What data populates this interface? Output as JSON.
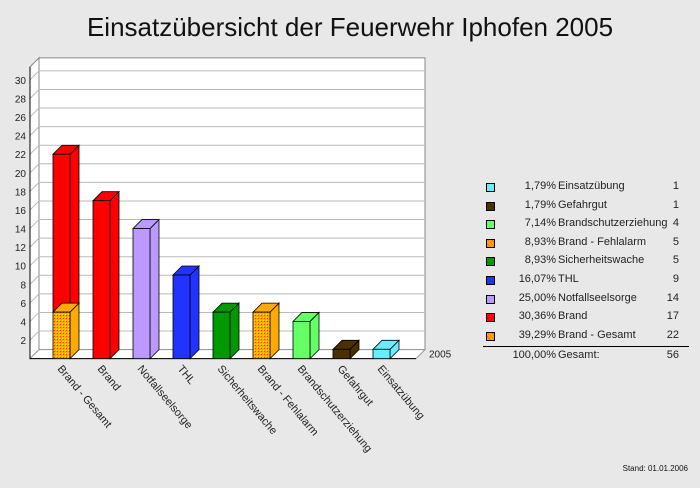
{
  "title": "Einsatzübersicht der Feuerwehr Iphofen 2005",
  "footer": "Stand: 01.01.2006",
  "chart_data": {
    "type": "bar",
    "title": "Einsatzübersicht der Feuerwehr Iphofen 2005",
    "series_label": "2005",
    "categories": [
      "Brand - Gesamt",
      "Brand",
      "Notfallseelsorge",
      "THL",
      "Sicherheitswache",
      "Brand - Fehlalarm",
      "Brandschutzerziehung",
      "Gefahrgut",
      "Einsatzübung"
    ],
    "values": [
      22,
      17,
      14,
      9,
      5,
      5,
      4,
      1,
      1
    ],
    "stack": {
      "Brand - Gesamt": [
        {
          "part": "Brand - Fehlalarm",
          "value": 5
        },
        {
          "part": "Brand",
          "value": 17
        }
      ]
    },
    "colors": [
      "#ffaa00",
      "#ff0000",
      "#bb99ff",
      "#2233ff",
      "#009900",
      "#ffaa00",
      "#66ff66",
      "#4a3000",
      "#66eeff"
    ],
    "hatched": [
      true,
      false,
      false,
      false,
      false,
      true,
      false,
      false,
      false
    ],
    "ylim": [
      0,
      32
    ],
    "yticks": [
      2,
      4,
      6,
      8,
      10,
      12,
      14,
      16,
      18,
      20,
      22,
      24,
      26,
      28,
      30
    ],
    "grid": true,
    "legend_position": "right"
  },
  "legend": {
    "items": [
      {
        "pct": "1,79%",
        "label": "Einsatzübung",
        "count": "1",
        "color": "#66eeff"
      },
      {
        "pct": "1,79%",
        "label": "Gefahrgut",
        "count": "1",
        "color": "#4a3000"
      },
      {
        "pct": "7,14%",
        "label": "Brandschutzerziehung",
        "count": "4",
        "color": "#66ff66"
      },
      {
        "pct": "8,93%",
        "label": "Brand - Fehlalarm",
        "count": "5",
        "color": "#ffaa00"
      },
      {
        "pct": "8,93%",
        "label": "Sicherheitswache",
        "count": "5",
        "color": "#009900"
      },
      {
        "pct": "16,07%",
        "label": "THL",
        "count": "9",
        "color": "#2233ff"
      },
      {
        "pct": "25,00%",
        "label": "Notfallseelsorge",
        "count": "14",
        "color": "#bb99ff"
      },
      {
        "pct": "30,36%",
        "label": "Brand",
        "count": "17",
        "color": "#ff0000"
      },
      {
        "pct": "39,29%",
        "label": "Brand - Gesamt",
        "count": "22",
        "color": "#ffaa00"
      }
    ],
    "total": {
      "pct": "100,00%",
      "label": "Gesamt:",
      "count": "56"
    }
  }
}
